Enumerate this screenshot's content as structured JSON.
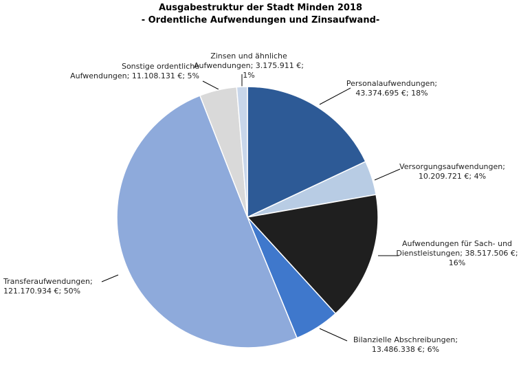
{
  "chart_data": {
    "type": "pie",
    "title": "Ausgabestruktur der Stadt Minden 2018",
    "subtitle": "- Ordentliche Aufwendungen und Zinsaufwand-",
    "categories": [
      "Personalaufwendungen;",
      "Versorgungsaufwendungen;",
      "Aufwendungen  für Sach- und Dienstleistungen;",
      "Bilanzielle Abschreibungen;",
      "Transferaufwendungen;",
      "Sonstige ordentliche Aufwendungen;",
      "Zinsen und ähnliche Aufwendungen;"
    ],
    "values": [
      43374695,
      10209721,
      38517506,
      13486338,
      121170934,
      11108131,
      3175911
    ],
    "value_labels": [
      "43.374.695 €;",
      "10.209.721 €;",
      "38.517.506 €;",
      "13.486.338 €;",
      "121.170.934 €;",
      "11.108.131 €;",
      "3.175.911 €;"
    ],
    "percent_labels": [
      "18%",
      "4%",
      "16%",
      "6%",
      "50%",
      "5%",
      "1%"
    ],
    "colors": [
      "#2d5a96",
      "#b8cce4",
      "#1f1f1f",
      "#3f78cc",
      "#8eaadb",
      "#d9d9d9",
      "#c8d6ea"
    ]
  }
}
